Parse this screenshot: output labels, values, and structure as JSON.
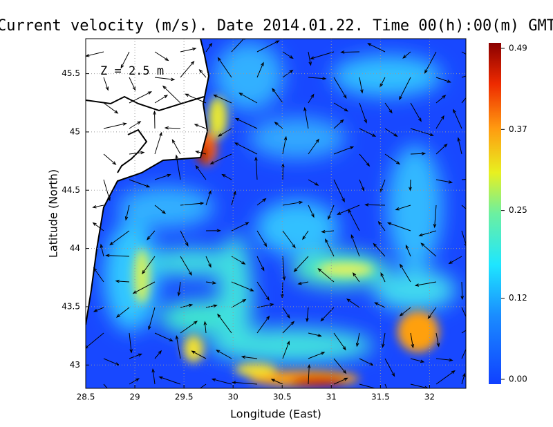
{
  "map": {
    "title": "Current velocity (m/s). Date 2014.01.22. Time 00(h):00(m) GMT",
    "annotation": "Z = 2.5 m",
    "x_label": "Longitude (East)",
    "y_label": "Latitude (North)",
    "xlim": [
      28.5,
      32.37
    ],
    "xticks": [
      {
        "value": 28.5,
        "label": "28.5"
      },
      29,
      {
        "value": 29.5,
        "label": "29.5"
      },
      30,
      {
        "value": 30.5,
        "label": "30.5"
      },
      31,
      {
        "value": 31.5,
        "label": "31.5"
      },
      32
    ],
    "ylim": [
      42.8,
      45.8
    ],
    "yticks": [
      43,
      {
        "value": 43.5,
        "label": "43.5"
      },
      44,
      {
        "value": 44.5,
        "label": "44.5"
      },
      45,
      {
        "value": 45.5,
        "label": "45.5"
      }
    ],
    "grid": true,
    "colorbar": {
      "lim": [
        0,
        0.49
      ],
      "ticks": [
        {
          "value": 0,
          "label": "0.00"
        },
        0.12,
        0.25,
        0.37,
        0.49
      ]
    }
  }
}
